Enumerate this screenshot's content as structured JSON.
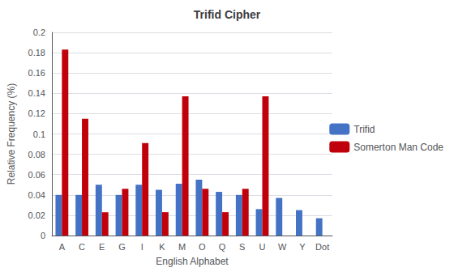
{
  "chart_data": {
    "type": "bar",
    "title": "Trifid Cipher",
    "xlabel": "English Alphabet",
    "ylabel": "Relative Frequency (%)",
    "categories": [
      "A",
      "C",
      "E",
      "G",
      "I",
      "K",
      "M",
      "O",
      "Q",
      "S",
      "U",
      "W",
      "Y",
      "Dot"
    ],
    "series": [
      {
        "name": "Trifid",
        "color": "#4472C4",
        "values": [
          0.04,
          0.04,
          0.05,
          0.04,
          0.05,
          0.045,
          0.051,
          0.055,
          0.043,
          0.04,
          0.026,
          0.037,
          0.025,
          0.017
        ]
      },
      {
        "name": "Somerton Man Code",
        "color": "#C0000A",
        "values": [
          0.183,
          0.115,
          0.023,
          0.046,
          0.091,
          0.023,
          0.137,
          0.046,
          0.023,
          0.046,
          0.137,
          0.0,
          0.0,
          0.0
        ]
      }
    ],
    "ylim": [
      0,
      0.2
    ],
    "yticks": [
      0,
      0.02,
      0.04,
      0.06,
      0.08,
      0.1,
      0.12,
      0.14,
      0.16,
      0.18,
      0.2
    ],
    "grid": true,
    "legend": "right"
  }
}
